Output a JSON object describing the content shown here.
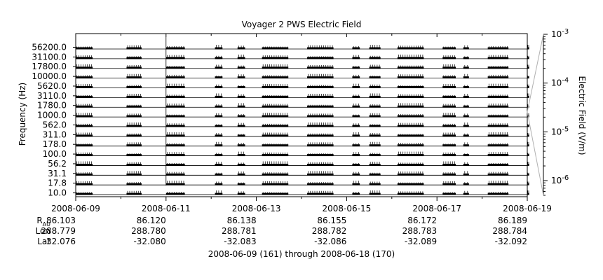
{
  "chart_data": {
    "type": "line",
    "title": "Voyager 2 PWS Electric Field",
    "ylabel": "Frequency (Hz)",
    "y2label": "Electric Field (V/m)",
    "channels": [
      "56200.0",
      "31100.0",
      "17800.0",
      "10000.0",
      "5620.0",
      "3110.0",
      "1780.0",
      "1000.0",
      "562.0",
      "311.0",
      "178.0",
      "100.0",
      "56.2",
      "31.1",
      "17.8",
      "10.0"
    ],
    "x_ticks": [
      "2008-06-09",
      "2008-06-11",
      "2008-06-13",
      "2008-06-15",
      "2008-06-17",
      "2008-06-19"
    ],
    "xlim": [
      "2008-06-09",
      "2008-06-19"
    ],
    "colorbar": {
      "scale": "log",
      "range": [
        5e-07,
        0.001
      ],
      "ticks": [
        "10^-6",
        "10^-5",
        "10^-4",
        "10^-3"
      ]
    },
    "data_segments": [
      [
        "2008-06-09 00:00",
        "2008-06-09 09:00"
      ],
      [
        "2008-06-10 03:00",
        "2008-06-10 11:00"
      ],
      [
        "2008-06-11 00:00",
        "2008-06-11 10:00"
      ],
      [
        "2008-06-12 02:00",
        "2008-06-12 06:00"
      ],
      [
        "2008-06-12 14:00",
        "2008-06-12 18:00"
      ],
      [
        "2008-06-13 03:00",
        "2008-06-13 17:00"
      ],
      [
        "2008-06-14 03:00",
        "2008-06-14 17:00"
      ],
      [
        "2008-06-15 03:00",
        "2008-06-15 07:00"
      ],
      [
        "2008-06-15 12:00",
        "2008-06-15 18:00"
      ],
      [
        "2008-06-16 03:00",
        "2008-06-16 17:00"
      ],
      [
        "2008-06-17 03:00",
        "2008-06-17 10:00"
      ],
      [
        "2008-06-17 14:00",
        "2008-06-17 17:00"
      ],
      [
        "2008-06-18 03:00",
        "2008-06-18 14:00"
      ],
      [
        "2008-06-19 00:00",
        "2008-06-19 01:00"
      ]
    ],
    "ephemeris": {
      "labels": {
        "r": "R",
        "r_sub": "AU",
        "lon": "Lon",
        "lat": "Lat"
      },
      "rows": [
        {
          "date": "2008-06-09",
          "r": "86.103",
          "lon": "288.779",
          "lat": "-32.076"
        },
        {
          "date": "2008-06-11",
          "r": "86.120",
          "lon": "288.780",
          "lat": "-32.080"
        },
        {
          "date": "2008-06-13",
          "r": "86.138",
          "lon": "288.781",
          "lat": "-32.083"
        },
        {
          "date": "2008-06-15",
          "r": "86.155",
          "lon": "288.782",
          "lat": "-32.086"
        },
        {
          "date": "2008-06-17",
          "r": "86.172",
          "lon": "288.783",
          "lat": "-32.089"
        },
        {
          "date": "2008-06-19",
          "r": "86.189",
          "lon": "288.784",
          "lat": "-32.092"
        }
      ]
    },
    "footer": "2008-06-09 (161) through 2008-06-18 (170)"
  }
}
